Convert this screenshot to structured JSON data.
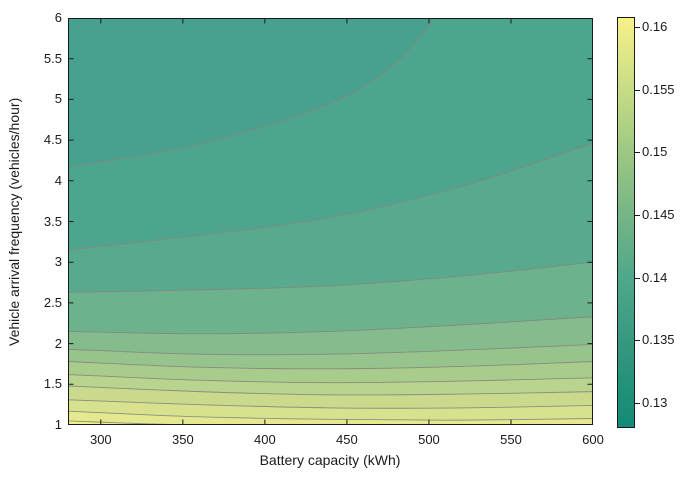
{
  "figure": {
    "background": "#ffffff",
    "axis_color": "#1a1a1a",
    "text_color": "#1a1a1a"
  },
  "chart_data": {
    "type": "filled-contour",
    "title": "",
    "xlabel": "Battery capacity (kWh)",
    "ylabel": "Vehicle arrival frequency (vehicles/hour)",
    "xlim": [
      280,
      600
    ],
    "ylim": [
      1,
      6
    ],
    "x_ticks": [
      300,
      350,
      400,
      450,
      500,
      550,
      600
    ],
    "y_ticks": [
      1,
      1.5,
      2,
      2.5,
      3,
      3.5,
      4,
      4.5,
      5,
      5.5,
      6
    ],
    "grid": false,
    "legend": "colorbar-right",
    "contour_line_color": "#85857d",
    "band_colors": [
      "#47a18e",
      "#4ea58e",
      "#58aa8e",
      "#6cb28c",
      "#84bc8e",
      "#97c48c",
      "#a8cc8c",
      "#b9d48e",
      "#c9da8d",
      "#d7e18e",
      "#e4e88f",
      "#f2f08b"
    ],
    "boundaries": [
      {
        "level": 0.1325,
        "points": [
          [
            280,
            4.17
          ],
          [
            360,
            4.45
          ],
          [
            440,
            4.95
          ],
          [
            480,
            5.45
          ],
          [
            505,
            6.05
          ]
        ]
      },
      {
        "level": 0.135,
        "points": [
          [
            280,
            3.15
          ],
          [
            360,
            3.33
          ],
          [
            440,
            3.55
          ],
          [
            520,
            3.93
          ],
          [
            600,
            4.46
          ]
        ]
      },
      {
        "level": 0.1375,
        "points": [
          [
            280,
            2.63
          ],
          [
            360,
            2.66
          ],
          [
            440,
            2.71
          ],
          [
            520,
            2.83
          ],
          [
            600,
            3.0
          ]
        ]
      },
      {
        "level": 0.14,
        "points": [
          [
            280,
            2.15
          ],
          [
            360,
            2.12
          ],
          [
            440,
            2.15
          ],
          [
            520,
            2.23
          ],
          [
            600,
            2.33
          ]
        ]
      },
      {
        "level": 0.1425,
        "points": [
          [
            280,
            1.93
          ],
          [
            360,
            1.87
          ],
          [
            440,
            1.87
          ],
          [
            520,
            1.92
          ],
          [
            600,
            1.99
          ]
        ]
      },
      {
        "level": 0.145,
        "points": [
          [
            280,
            1.78
          ],
          [
            360,
            1.71
          ],
          [
            440,
            1.69
          ],
          [
            520,
            1.72
          ],
          [
            600,
            1.78
          ]
        ]
      },
      {
        "level": 0.1475,
        "points": [
          [
            280,
            1.62
          ],
          [
            360,
            1.55
          ],
          [
            440,
            1.52
          ],
          [
            520,
            1.54
          ],
          [
            600,
            1.58
          ]
        ]
      },
      {
        "level": 0.15,
        "points": [
          [
            280,
            1.48
          ],
          [
            360,
            1.41
          ],
          [
            440,
            1.37
          ],
          [
            520,
            1.38
          ],
          [
            600,
            1.41
          ]
        ]
      },
      {
        "level": 0.1525,
        "points": [
          [
            280,
            1.31
          ],
          [
            360,
            1.25
          ],
          [
            440,
            1.21
          ],
          [
            520,
            1.21
          ],
          [
            600,
            1.24
          ]
        ]
      },
      {
        "level": 0.155,
        "points": [
          [
            280,
            1.17
          ],
          [
            360,
            1.1
          ],
          [
            440,
            1.07
          ],
          [
            520,
            1.06
          ],
          [
            600,
            1.08
          ]
        ]
      },
      {
        "level": 0.1575,
        "points": [
          [
            280,
            1.05
          ],
          [
            320,
            1.02
          ],
          [
            352,
            1.0
          ]
        ]
      }
    ],
    "colorbar": {
      "range": [
        0.128,
        0.1608
      ],
      "tick_values": [
        0.13,
        0.135,
        0.14,
        0.145,
        0.15,
        0.155,
        0.16
      ],
      "tick_labels": [
        "0.13",
        "0.135",
        "0.14",
        "0.145",
        "0.15",
        "0.155",
        "0.16"
      ],
      "gradient_stops": [
        {
          "v": 0.128,
          "color": "#128a75"
        },
        {
          "v": 0.135,
          "color": "#37997f"
        },
        {
          "v": 0.14,
          "color": "#4fa88b"
        },
        {
          "v": 0.145,
          "color": "#76b586"
        },
        {
          "v": 0.15,
          "color": "#9dc883"
        },
        {
          "v": 0.155,
          "color": "#c6dc85"
        },
        {
          "v": 0.16,
          "color": "#f0ee8a"
        },
        {
          "v": 0.1608,
          "color": "#f7f483"
        }
      ]
    }
  }
}
